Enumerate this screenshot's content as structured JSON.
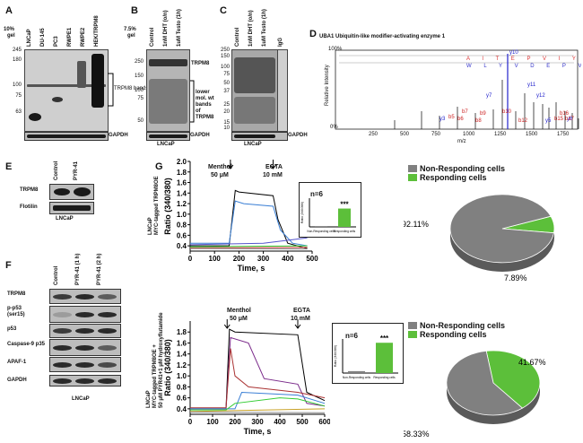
{
  "panels": {
    "A": {
      "letter": "A",
      "pct": "10%",
      "gel": "gel",
      "lanes": [
        "LNCaP",
        "DU-145",
        "PC3",
        "RWPE1",
        "RWPE2",
        "HEK/TRPM8"
      ],
      "mw": [
        "245",
        "180",
        "100",
        "75",
        "63"
      ],
      "bands_label": "TRPM8 bands",
      "gapdh": "GAPDH"
    },
    "B": {
      "letter": "B",
      "pct": "7.5%",
      "gel": "gel",
      "lanes": [
        "Control",
        "1nM DHT (o/n)",
        "1uM Testo (1h)"
      ],
      "mw": [
        "250",
        "150",
        "100",
        "75",
        "50"
      ],
      "trpm8": "TRPM8",
      "lower": [
        "lower",
        "mol. wt",
        "bands",
        "of",
        "TRPM8"
      ],
      "gapdh": "GAPDH",
      "cell": "LNCaP"
    },
    "C": {
      "letter": "C",
      "lanes": [
        "Control",
        "1nM DHT (o/n)",
        "1uM Testo (1h)",
        "IgG"
      ],
      "mw": [
        "250",
        "150",
        "100",
        "75",
        "50",
        "37",
        "25",
        "20",
        "15",
        "10"
      ],
      "gapdh": "GAPDH",
      "cell": "LNCaP"
    },
    "D": {
      "letter": "D",
      "title": "UBA1 Ubiquitin-like modifier-activating enzyme 1",
      "yaxis": "Relative Intensity",
      "xaxis": "m/z",
      "ytick_top": "100%",
      "ytick_bottom": "0%",
      "xticks": [
        "250",
        "500",
        "750",
        "1000",
        "1250",
        "1500",
        "1750"
      ],
      "ions_y": [
        "y10",
        "y11",
        "y12",
        "y7",
        "y3",
        "y5",
        "y6"
      ],
      "ions_b": [
        "b5",
        "b7",
        "b6",
        "b9",
        "b8",
        "b10",
        "b12",
        "b15",
        "b16",
        "b17"
      ]
    },
    "E": {
      "letter": "E",
      "lanes": [
        "Control",
        "PYR-41"
      ],
      "rows": [
        "TRPM8",
        "Flotilin"
      ],
      "cell": "LNCaP"
    },
    "F": {
      "letter": "F",
      "lanes": [
        "Control",
        "PYR-41 (1 h)",
        "PYR-41 (2 h)"
      ],
      "rows": [
        "TRPM8",
        "p-p53 (ser15)",
        "p53",
        "Caspase-9 p35",
        "APAF-1",
        "GAPDH"
      ],
      "cell": "LNCaP"
    }
  },
  "G": {
    "letter": "G",
    "top": {
      "side_label": [
        "LNCaP",
        "MYC-tagged TRPM8OE"
      ],
      "menthol": "Menthol",
      "menthol_conc": "50 μM",
      "egta": "EGTA",
      "egta_conc": "10 mM",
      "n": "n=6",
      "stars": "***",
      "inset_xlabels": [
        "Non-Responding cells",
        "Responding cells"
      ],
      "inset_ylabel": "Ratio (340/380)"
    },
    "bottom": {
      "side_label": [
        "LNCaP",
        "MYC-tagged TRPM8OE +",
        "50 μM PYR41+1 μM hydroxyflutamide"
      ],
      "menthol": "Menthol",
      "menthol_conc": "50 μM",
      "egta": "EGTA",
      "egta_conc": "10 mM",
      "n": "n=6",
      "stars": "***",
      "inset_xlabels": [
        "Non-Responding cells",
        "Responding cells"
      ],
      "inset_ylabel": "Ratio (340/380)"
    }
  },
  "chart_data": [
    {
      "type": "line",
      "title": "",
      "xlabel": "Time, s",
      "ylabel": "Ratio (340/380)",
      "xlim": [
        0,
        500
      ],
      "ylim": [
        0.3,
        2.0
      ],
      "xticks": [
        0,
        100,
        200,
        300,
        400,
        500
      ],
      "yticks": [
        0.4,
        0.6,
        0.8,
        1.0,
        1.2,
        1.4,
        1.6,
        1.8,
        2.0
      ],
      "annotations": [
        "Menthol 50 μM",
        "EGTA 10 mM"
      ]
    },
    {
      "type": "bar",
      "title": "",
      "categories": [
        "Non-Responding cells",
        "Responding cells"
      ],
      "values": [
        0.05,
        1.15
      ],
      "ylabel": "Ratio (340/380)",
      "annotation": "n=6 ***"
    },
    {
      "type": "pie",
      "labels": [
        "Non-Responding cells",
        "Responding cells"
      ],
      "values": [
        92.11,
        7.89
      ],
      "value_labels": [
        "92.11%",
        "7.89%"
      ],
      "colors": [
        "#808080",
        "#5cbf3a"
      ]
    },
    {
      "type": "line",
      "title": "",
      "xlabel": "Time, s",
      "ylabel": "Ratio (340/380)",
      "xlim": [
        0,
        600
      ],
      "ylim": [
        0.3,
        2.0
      ],
      "xticks": [
        0,
        100,
        200,
        300,
        400,
        500,
        600
      ],
      "yticks": [
        0.4,
        0.6,
        0.8,
        1.0,
        1.2,
        1.4,
        1.6,
        1.8
      ],
      "annotations": [
        "Menthol 50 μM",
        "EGTA 10 mM"
      ]
    },
    {
      "type": "bar",
      "title": "",
      "categories": [
        "Non-Responding cells",
        "Responding cells"
      ],
      "values": [
        0.1,
        1.6
      ],
      "ylabel": "Ratio (340/380)",
      "annotation": "n=6 ***"
    },
    {
      "type": "pie",
      "labels": [
        "Non-Responding cells",
        "Responding cells"
      ],
      "values": [
        58.33,
        41.67
      ],
      "value_labels": [
        "58.33%",
        "41.67%"
      ],
      "colors": [
        "#808080",
        "#5cbf3a"
      ]
    }
  ],
  "colors": {
    "green": "#5cbf3a",
    "grey": "#808080"
  }
}
